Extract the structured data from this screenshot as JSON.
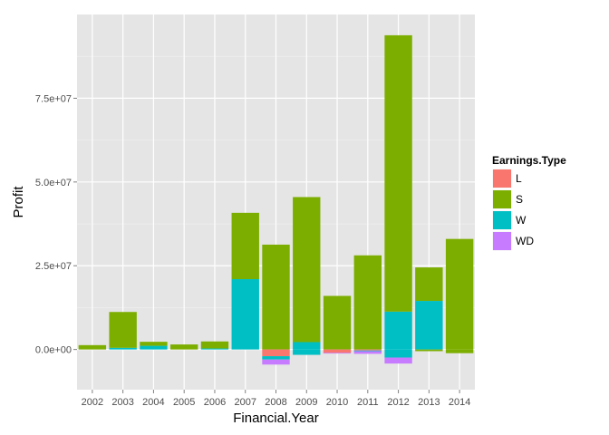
{
  "chart_data": {
    "type": "bar",
    "stacked": true,
    "xlabel": "Financial.Year",
    "ylabel": "Profit",
    "categories": [
      "2002",
      "2003",
      "2004",
      "2005",
      "2006",
      "2007",
      "2008",
      "2009",
      "2010",
      "2011",
      "2012",
      "2013",
      "2014"
    ],
    "ylim": [
      -12000000,
      100000000
    ],
    "yticks": [
      {
        "value": 0,
        "label": "0.0e+00"
      },
      {
        "value": 25000000,
        "label": "2.5e+07"
      },
      {
        "value": 50000000,
        "label": "5.0e+07"
      },
      {
        "value": 75000000,
        "label": "7.5e+07"
      }
    ],
    "grid": true,
    "legend": {
      "title": "Earnings.Type",
      "position": "right"
    },
    "series": [
      {
        "name": "L",
        "color": "#F8766D",
        "values": [
          0,
          0,
          0,
          0,
          0,
          0,
          -2000000,
          0,
          -1000000,
          -300000,
          0,
          0,
          0
        ]
      },
      {
        "name": "S",
        "color": "#7CAE00",
        "values": [
          1300000,
          10700000,
          1200000,
          1500000,
          2100000,
          19800000,
          31300000,
          43300000,
          16000000,
          28100000,
          82500000,
          10000000,
          33000000
        ],
        "negative_values": [
          0,
          0,
          0,
          0,
          0,
          0,
          0,
          0,
          0,
          0,
          0,
          -500000,
          -1100000
        ]
      },
      {
        "name": "W",
        "color": "#00BFC4",
        "values": [
          0,
          500000,
          1100000,
          0,
          300000,
          21000000,
          0,
          2200000,
          0,
          0,
          11300000,
          14500000,
          0
        ],
        "negative_values": [
          0,
          0,
          0,
          0,
          0,
          0,
          -1000000,
          -1600000,
          0,
          -200000,
          -2400000,
          0,
          0
        ]
      },
      {
        "name": "WD",
        "color": "#C77CFF",
        "values": [
          0,
          0,
          0,
          0,
          0,
          0,
          -1500000,
          0,
          -200000,
          -800000,
          -1800000,
          0,
          0
        ]
      }
    ]
  }
}
